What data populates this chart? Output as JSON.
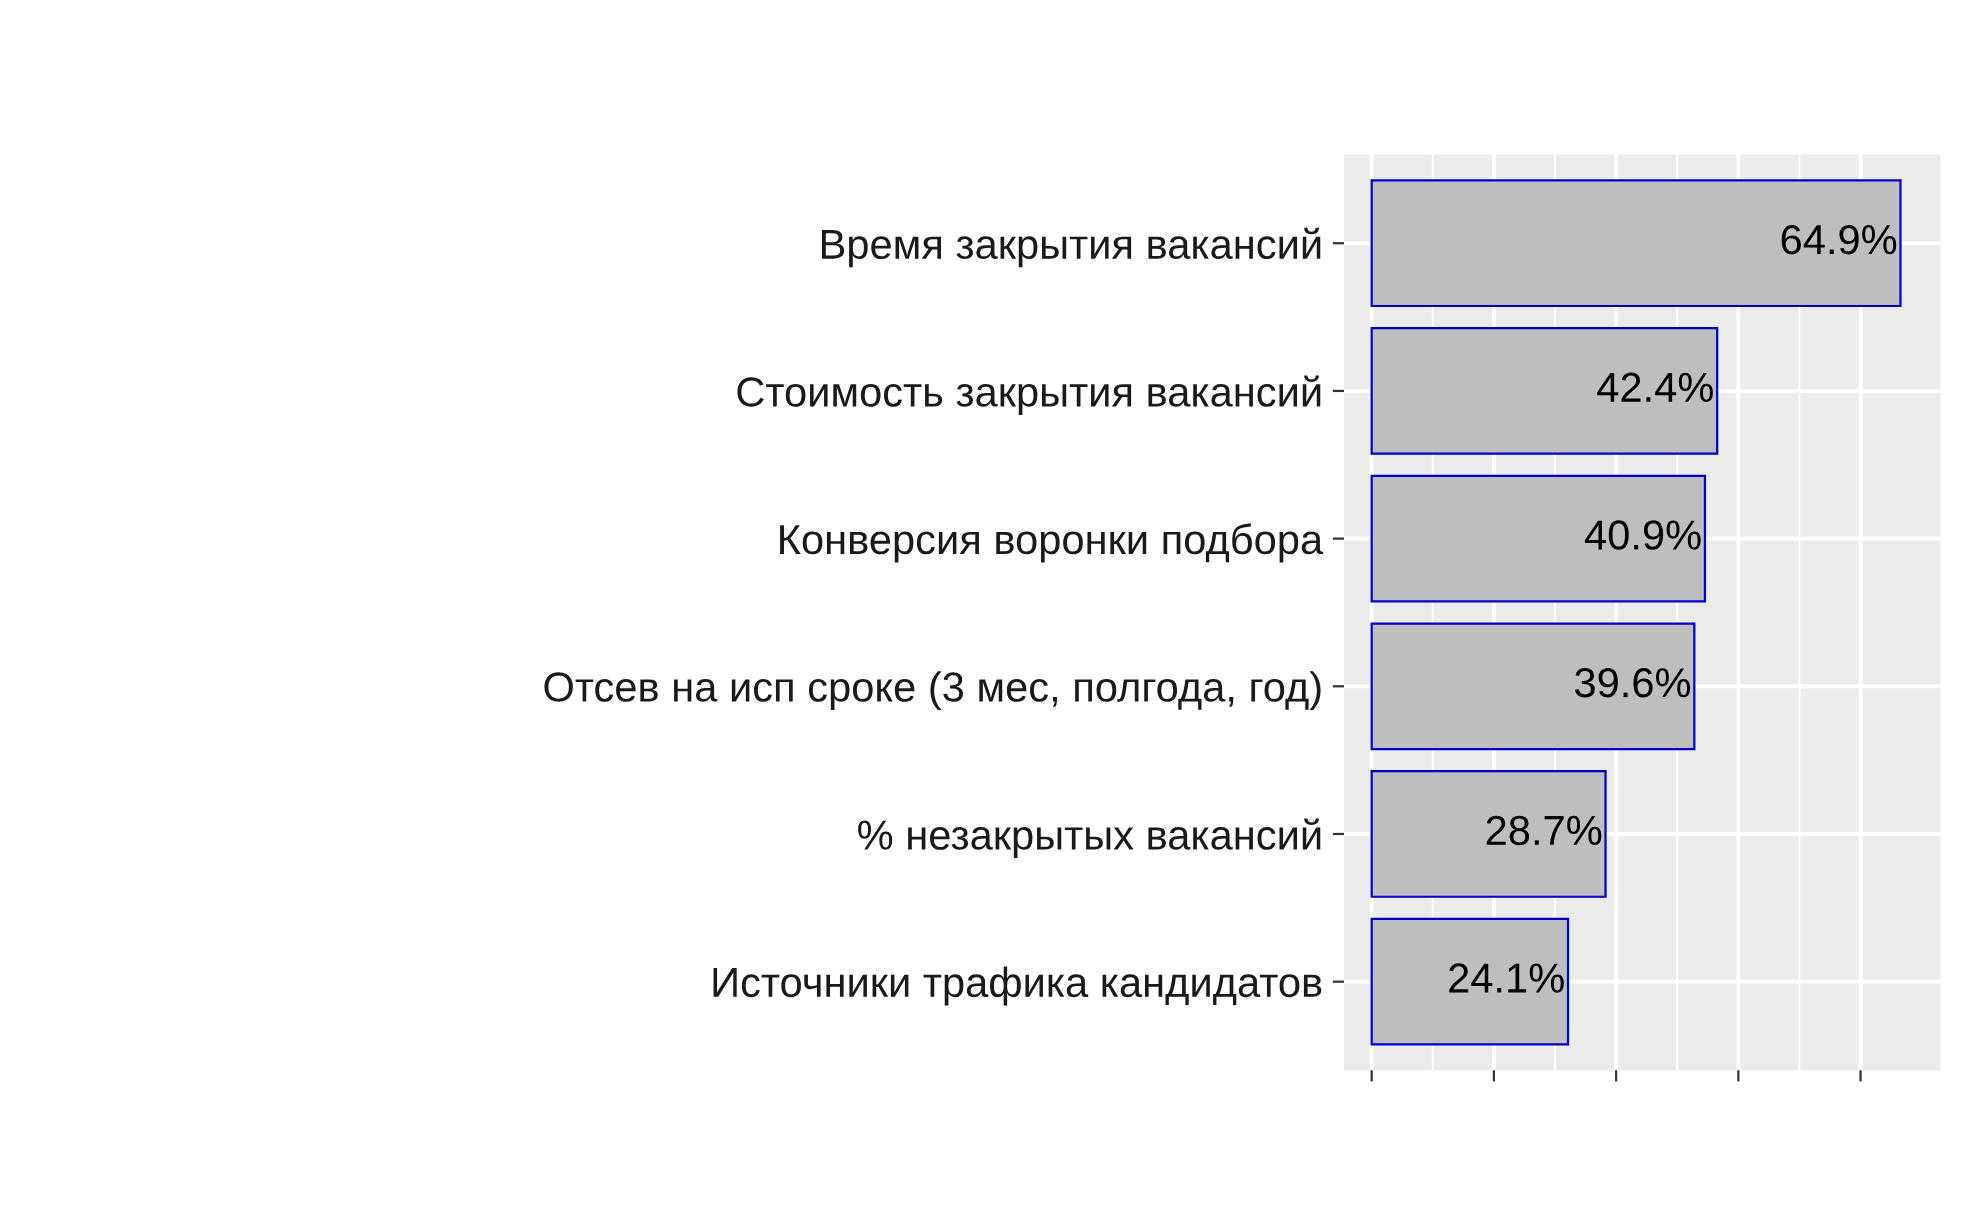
{
  "chart_data": {
    "type": "bar",
    "orientation": "horizontal",
    "categories": [
      "Время закрытия вакансий",
      "Стоимость закрытия вакансий",
      "Конверсия воронки подбора",
      "Отсев на исп сроке (3 мес, полгода, год)",
      "% незакрытых вакансий",
      "Источники трафика кандидатов"
    ],
    "values": [
      64.9,
      42.4,
      40.9,
      39.6,
      28.7,
      24.1
    ],
    "value_labels": [
      "64.9%",
      "42.4%",
      "40.9%",
      "39.6%",
      "28.7%",
      "24.1%"
    ],
    "color": "#bebebe",
    "xlim": [
      -3.4,
      69.8
    ],
    "xticks": [
      {
        "value": 0,
        "label": null
      },
      {
        "value": 15,
        "label": null
      },
      {
        "value": 30,
        "label": null
      },
      {
        "value": 45,
        "label": null
      },
      {
        "value": 60,
        "label": null
      }
    ],
    "tick_labels": "y",
    "grid": true
  }
}
